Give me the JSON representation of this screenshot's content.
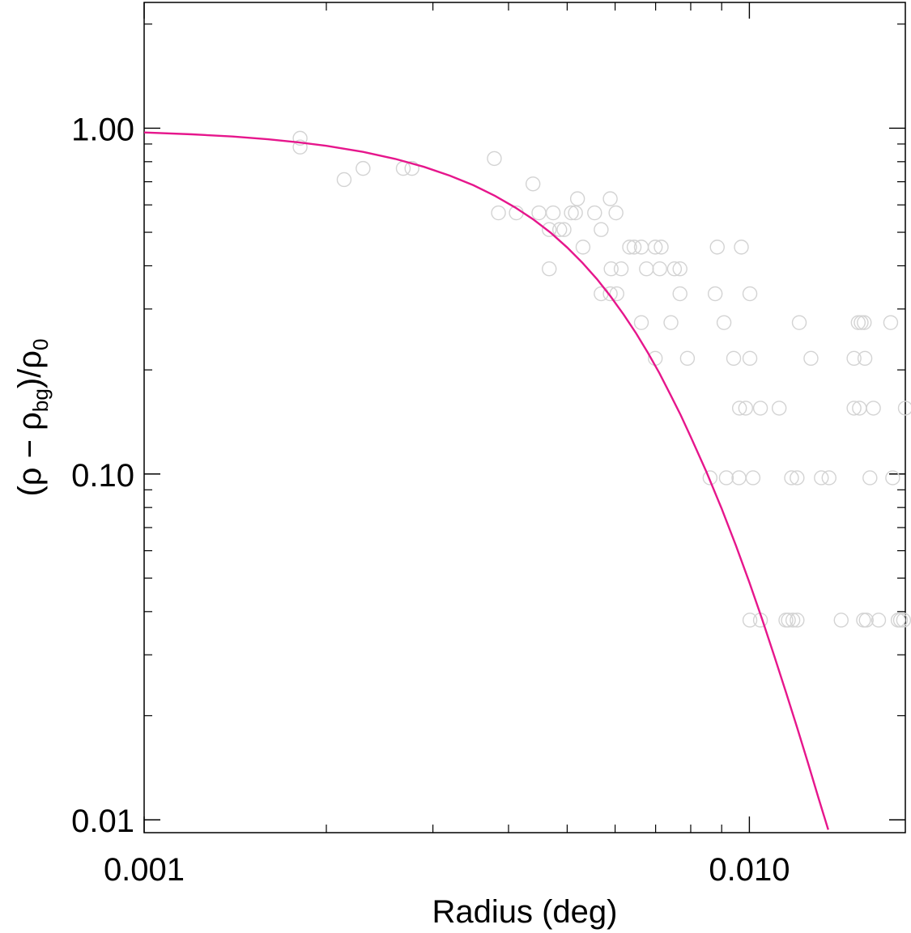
{
  "chart_data": {
    "type": "scatter",
    "title": "",
    "xlabel": "Radius (deg)",
    "ylabel": {
      "rho": "ρ",
      "minus": "−",
      "bg": "bg",
      "zero": "0"
    },
    "x_scale": "log",
    "y_scale": "log",
    "xlim": [
      0.001,
      0.0181
    ],
    "ylim": [
      0.00918,
      2.31
    ],
    "grid": false,
    "x_major_ticks": [
      {
        "value": 0.001,
        "label": "0.001"
      },
      {
        "value": 0.01,
        "label": "0.010"
      }
    ],
    "y_major_ticks": [
      {
        "value": 1.0,
        "label": "1.00"
      },
      {
        "value": 0.1,
        "label": "0.10"
      },
      {
        "value": 0.01,
        "label": "0.01"
      }
    ],
    "series": [
      {
        "kind": "points",
        "marker": "open-circle",
        "color": "#d3d3d3",
        "points": [
          [
            0.00181,
            0.935
          ],
          [
            0.00181,
            0.882
          ],
          [
            0.00214,
            0.71
          ],
          [
            0.0023,
            0.765
          ],
          [
            0.00268,
            0.765
          ],
          [
            0.00277,
            0.765
          ],
          [
            0.00379,
            0.817
          ],
          [
            0.00385,
            0.569
          ],
          [
            0.00412,
            0.569
          ],
          [
            0.00439,
            0.69
          ],
          [
            0.00449,
            0.569
          ],
          [
            0.00467,
            0.509
          ],
          [
            0.00467,
            0.392
          ],
          [
            0.00474,
            0.569
          ],
          [
            0.00486,
            0.509
          ],
          [
            0.00494,
            0.509
          ],
          [
            0.00508,
            0.569
          ],
          [
            0.00516,
            0.569
          ],
          [
            0.0052,
            0.625
          ],
          [
            0.00531,
            0.453
          ],
          [
            0.00555,
            0.569
          ],
          [
            0.00569,
            0.509
          ],
          [
            0.00569,
            0.332
          ],
          [
            0.00589,
            0.625
          ],
          [
            0.00589,
            0.332
          ],
          [
            0.00591,
            0.392
          ],
          [
            0.00602,
            0.569
          ],
          [
            0.00604,
            0.332
          ],
          [
            0.00614,
            0.392
          ],
          [
            0.00634,
            0.453
          ],
          [
            0.00645,
            0.453
          ],
          [
            0.00663,
            0.274
          ],
          [
            0.00663,
            0.453
          ],
          [
            0.00676,
            0.392
          ],
          [
            0.00699,
            0.453
          ],
          [
            0.00699,
            0.216
          ],
          [
            0.00711,
            0.392
          ],
          [
            0.00715,
            0.453
          ],
          [
            0.00742,
            0.274
          ],
          [
            0.00752,
            0.392
          ],
          [
            0.00768,
            0.392
          ],
          [
            0.00768,
            0.332
          ],
          [
            0.0079,
            0.216
          ],
          [
            0.00861,
            0.0975
          ],
          [
            0.00878,
            0.332
          ],
          [
            0.00885,
            0.453
          ],
          [
            0.00908,
            0.274
          ],
          [
            0.00916,
            0.0975
          ],
          [
            0.00942,
            0.216
          ],
          [
            0.00961,
            0.0975
          ],
          [
            0.00963,
            0.155
          ],
          [
            0.0097,
            0.453
          ],
          [
            0.00986,
            0.155
          ],
          [
            0.01002,
            0.332
          ],
          [
            0.01002,
            0.216
          ],
          [
            0.01002,
            0.0378
          ],
          [
            0.01014,
            0.0975
          ],
          [
            0.01043,
            0.155
          ],
          [
            0.01043,
            0.0378
          ],
          [
            0.0112,
            0.155
          ],
          [
            0.01149,
            0.0378
          ],
          [
            0.0116,
            0.0378
          ],
          [
            0.01174,
            0.0975
          ],
          [
            0.0118,
            0.0378
          ],
          [
            0.01199,
            0.0975
          ],
          [
            0.01199,
            0.0378
          ],
          [
            0.01209,
            0.274
          ],
          [
            0.01264,
            0.216
          ],
          [
            0.01315,
            0.0975
          ],
          [
            0.01354,
            0.0975
          ],
          [
            0.01418,
            0.0378
          ],
          [
            0.01489,
            0.216
          ],
          [
            0.01489,
            0.155
          ],
          [
            0.01513,
            0.274
          ],
          [
            0.0152,
            0.155
          ],
          [
            0.0153,
            0.274
          ],
          [
            0.01544,
            0.0378
          ],
          [
            0.01548,
            0.274
          ],
          [
            0.01552,
            0.216
          ],
          [
            0.0156,
            0.0378
          ],
          [
            0.01582,
            0.0975
          ],
          [
            0.01603,
            0.155
          ],
          [
            0.01635,
            0.0378
          ],
          [
            0.01712,
            0.274
          ],
          [
            0.01725,
            0.0975
          ],
          [
            0.01761,
            0.0378
          ],
          [
            0.01777,
            0.0378
          ],
          [
            0.01798,
            0.0378
          ],
          [
            0.0181,
            0.155
          ]
        ]
      },
      {
        "kind": "line",
        "color": "#e6168c",
        "points": [
          [
            0.001,
            0.972
          ],
          [
            0.0012,
            0.96
          ],
          [
            0.0014,
            0.946
          ],
          [
            0.0016,
            0.929
          ],
          [
            0.0018,
            0.91
          ],
          [
            0.002,
            0.889
          ],
          [
            0.0023,
            0.854
          ],
          [
            0.0026,
            0.815
          ],
          [
            0.0029,
            0.773
          ],
          [
            0.0032,
            0.729
          ],
          [
            0.0035,
            0.684
          ],
          [
            0.0038,
            0.637
          ],
          [
            0.0041,
            0.59
          ],
          [
            0.0044,
            0.544
          ],
          [
            0.0047,
            0.498
          ],
          [
            0.005,
            0.452
          ],
          [
            0.0053,
            0.408
          ],
          [
            0.0056,
            0.366
          ],
          [
            0.0059,
            0.326
          ],
          [
            0.0062,
            0.289
          ],
          [
            0.0065,
            0.255
          ],
          [
            0.0068,
            0.224
          ],
          [
            0.0071,
            0.196
          ],
          [
            0.0074,
            0.17
          ],
          [
            0.0077,
            0.148
          ],
          [
            0.008,
            0.128
          ],
          [
            0.0085,
            0.101
          ],
          [
            0.009,
            0.0794
          ],
          [
            0.0095,
            0.0621
          ],
          [
            0.01,
            0.0486
          ],
          [
            0.0105,
            0.038
          ],
          [
            0.011,
            0.0297
          ],
          [
            0.0115,
            0.0233
          ],
          [
            0.012,
            0.0184
          ],
          [
            0.0125,
            0.0146
          ],
          [
            0.013,
            0.0116
          ],
          [
            0.0135,
            0.00936
          ]
        ]
      }
    ]
  }
}
